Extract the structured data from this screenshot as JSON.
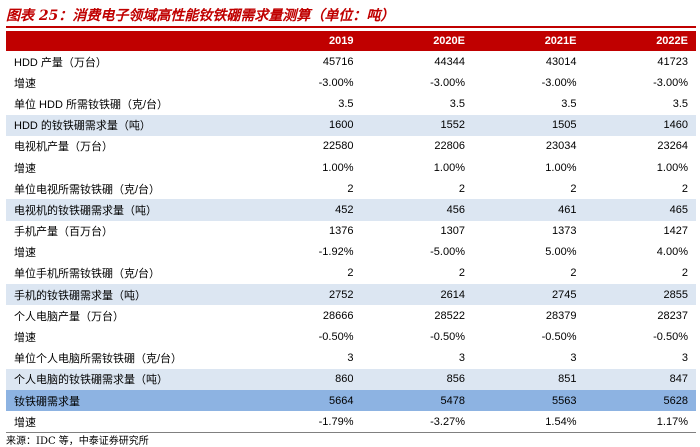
{
  "title": "图表 25：消费电子领域高性能钕铁硼需求量测算（单位：吨）",
  "table": {
    "columns": [
      "",
      "2019",
      "2020E",
      "2021E",
      "2022E"
    ],
    "rows": [
      {
        "label": "HDD 产量（万台）",
        "values": [
          "45716",
          "44344",
          "43014",
          "41723"
        ],
        "style": "normal"
      },
      {
        "label": "增速",
        "values": [
          "-3.00%",
          "-3.00%",
          "-3.00%",
          "-3.00%"
        ],
        "style": "normal"
      },
      {
        "label": "单位 HDD 所需钕铁硼（克/台）",
        "values": [
          "3.5",
          "3.5",
          "3.5",
          "3.5"
        ],
        "style": "normal"
      },
      {
        "label": "HDD 的钕铁硼需求量（吨）",
        "values": [
          "1600",
          "1552",
          "1505",
          "1460"
        ],
        "style": "alt"
      },
      {
        "label": "电视机产量（万台）",
        "values": [
          "22580",
          "22806",
          "23034",
          "23264"
        ],
        "style": "normal"
      },
      {
        "label": "增速",
        "values": [
          "1.00%",
          "1.00%",
          "1.00%",
          "1.00%"
        ],
        "style": "normal"
      },
      {
        "label": "单位电视所需钕铁硼（克/台）",
        "values": [
          "2",
          "2",
          "2",
          "2"
        ],
        "style": "normal"
      },
      {
        "label": "电视机的钕铁硼需求量（吨）",
        "values": [
          "452",
          "456",
          "461",
          "465"
        ],
        "style": "alt"
      },
      {
        "label": "手机产量（百万台）",
        "values": [
          "1376",
          "1307",
          "1373",
          "1427"
        ],
        "style": "normal"
      },
      {
        "label": "增速",
        "values": [
          "-1.92%",
          "-5.00%",
          "5.00%",
          "4.00%"
        ],
        "style": "normal"
      },
      {
        "label": "单位手机所需钕铁硼（克/台）",
        "values": [
          "2",
          "2",
          "2",
          "2"
        ],
        "style": "normal"
      },
      {
        "label": "手机的钕铁硼需求量（吨）",
        "values": [
          "2752",
          "2614",
          "2745",
          "2855"
        ],
        "style": "alt"
      },
      {
        "label": "个人电脑产量（万台）",
        "values": [
          "28666",
          "28522",
          "28379",
          "28237"
        ],
        "style": "normal"
      },
      {
        "label": "增速",
        "values": [
          "-0.50%",
          "-0.50%",
          "-0.50%",
          "-0.50%"
        ],
        "style": "normal"
      },
      {
        "label": "单位个人电脑所需钕铁硼（克/台）",
        "values": [
          "3",
          "3",
          "3",
          "3"
        ],
        "style": "normal"
      },
      {
        "label": "个人电脑的钕铁硼需求量（吨）",
        "values": [
          "860",
          "856",
          "851",
          "847"
        ],
        "style": "alt"
      },
      {
        "label": "钕铁硼需求量",
        "values": [
          "5664",
          "5478",
          "5563",
          "5628"
        ],
        "style": "total"
      },
      {
        "label": "增速",
        "values": [
          "-1.79%",
          "-3.27%",
          "1.54%",
          "1.17%"
        ],
        "style": "last"
      }
    ]
  },
  "source": "来源：IDC 等，中泰证券研究所",
  "colors": {
    "title_red": "#c00000",
    "highlight_row": "#dce6f2",
    "total_row": "#8db3e2"
  }
}
